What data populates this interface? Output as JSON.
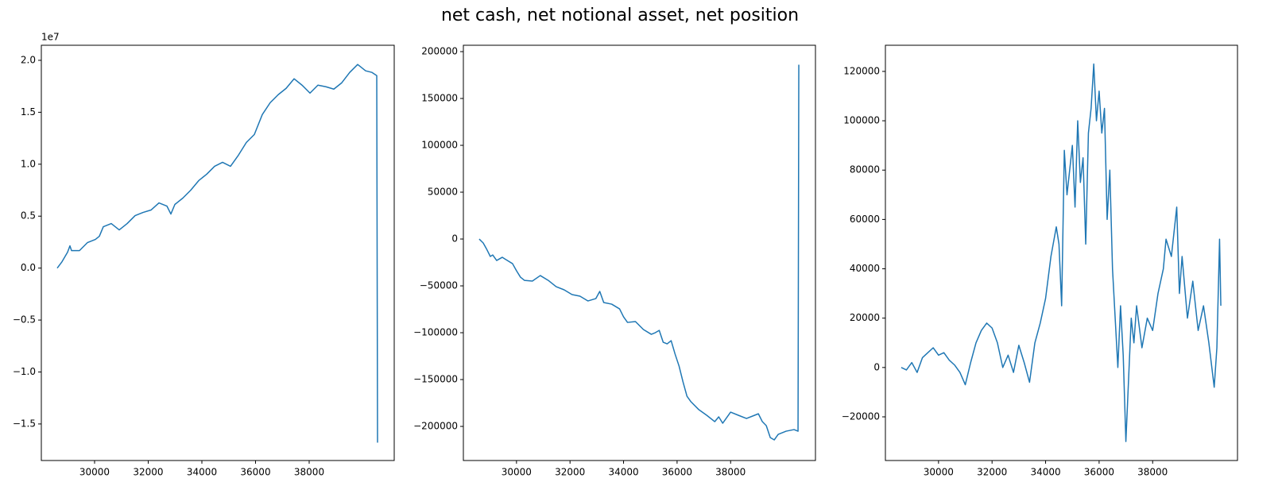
{
  "title": "net cash, net notional asset, net position",
  "chart_data": [
    {
      "type": "line",
      "color": "#1f77b4",
      "y_offset_label": "1e7",
      "xlim": [
        28015,
        41170
      ],
      "xticks": [
        30000,
        32000,
        34000,
        36000,
        38000
      ],
      "ylim": [
        -18520000,
        21450000
      ],
      "yticks": [
        {
          "value": -15000000,
          "label": "−1.5"
        },
        {
          "value": -10000000,
          "label": "−1.0"
        },
        {
          "value": -5000000,
          "label": "−0.5"
        },
        {
          "value": 0,
          "label": "0.0"
        },
        {
          "value": 5000000,
          "label": "0.5"
        },
        {
          "value": 10000000,
          "label": "1.0"
        },
        {
          "value": 15000000,
          "label": "1.5"
        },
        {
          "value": 20000000,
          "label": "2.0"
        }
      ],
      "x": [
        28607,
        28785,
        28993,
        29081,
        29141,
        29437,
        29733,
        30030,
        30178,
        30326,
        30622,
        30919,
        31215,
        31511,
        31807,
        32104,
        32400,
        32696,
        32844,
        32993,
        33289,
        33585,
        33882,
        34178,
        34474,
        34770,
        35067,
        35363,
        35659,
        35956,
        36252,
        36548,
        36845,
        37141,
        37437,
        37733,
        38030,
        38326,
        38622,
        38919,
        39215,
        39511,
        39807,
        40104,
        40341,
        40519,
        40548
      ],
      "values": [
        0,
        612600,
        1531400,
        2144000,
        1684500,
        1684500,
        2450200,
        2756500,
        3062800,
        3981600,
        4287900,
        3675400,
        4287900,
        5053600,
        5359900,
        5589600,
        6278700,
        5972500,
        5206800,
        6125600,
        6738200,
        7503900,
        8422700,
        9035300,
        9801000,
        10183800,
        9801000,
        10872900,
        12098100,
        12863800,
        14778000,
        15926600,
        16692300,
        17304800,
        18223700,
        17611100,
        16845400,
        17611100,
        17458000,
        17228300,
        17840800,
        18836200,
        19601900,
        18989400,
        18836200,
        18529900,
        -16800000
      ]
    },
    {
      "type": "line",
      "color": "#1f77b4",
      "xlim": [
        28015,
        41170
      ],
      "xticks": [
        30000,
        32000,
        34000,
        36000,
        38000
      ],
      "ylim": [
        -236400,
        206800
      ],
      "yticks": [
        {
          "value": -200000,
          "label": "−200000"
        },
        {
          "value": -150000,
          "label": "−150000"
        },
        {
          "value": -100000,
          "label": "−100000"
        },
        {
          "value": -50000,
          "label": "−50000"
        },
        0,
        50000,
        100000,
        150000,
        200000
      ],
      "x": [
        28607,
        28756,
        28874,
        29022,
        29111,
        29259,
        29467,
        29704,
        29852,
        30000,
        30148,
        30296,
        30593,
        30889,
        31185,
        31482,
        31778,
        32074,
        32370,
        32667,
        32963,
        33111,
        33259,
        33556,
        33852,
        34000,
        34148,
        34445,
        34741,
        35037,
        35185,
        35333,
        35482,
        35630,
        35778,
        35926,
        36074,
        36222,
        36370,
        36519,
        36815,
        37111,
        37408,
        37556,
        37704,
        38000,
        38296,
        38593,
        38889,
        39037,
        39185,
        39333,
        39482,
        39630,
        39778,
        40074,
        40370,
        40519,
        40548
      ],
      "values": [
        0,
        -4200,
        -10200,
        -18600,
        -17000,
        -22900,
        -19500,
        -23700,
        -26300,
        -33900,
        -40700,
        -44100,
        -44900,
        -39000,
        -44100,
        -50900,
        -54200,
        -59300,
        -61000,
        -66100,
        -63600,
        -55900,
        -67800,
        -69500,
        -74600,
        -83100,
        -89000,
        -88100,
        -96600,
        -101700,
        -100000,
        -97500,
        -110200,
        -111900,
        -108500,
        -122900,
        -135600,
        -152600,
        -167800,
        -173700,
        -182200,
        -188200,
        -194900,
        -189800,
        -196600,
        -184800,
        -188200,
        -191500,
        -188200,
        -186500,
        -194900,
        -199200,
        -211900,
        -214400,
        -208500,
        -205100,
        -203400,
        -205100,
        186000
      ]
    },
    {
      "type": "line",
      "color": "#1f77b4",
      "xlim": [
        28015,
        41170
      ],
      "xticks": [
        30000,
        32000,
        34000,
        36000,
        38000
      ],
      "ylim": [
        -37700,
        130600
      ],
      "yticks": [
        {
          "value": -20000,
          "label": "−20000"
        },
        0,
        20000,
        40000,
        60000,
        80000,
        100000,
        120000
      ],
      "x": [
        28607,
        28800,
        29000,
        29200,
        29400,
        29600,
        29800,
        30000,
        30200,
        30400,
        30600,
        30800,
        31000,
        31200,
        31400,
        31600,
        31800,
        32000,
        32200,
        32400,
        32600,
        32800,
        33000,
        33200,
        33400,
        33600,
        33800,
        34000,
        34200,
        34400,
        34500,
        34600,
        34700,
        34800,
        34900,
        35000,
        35100,
        35200,
        35300,
        35400,
        35500,
        35600,
        35700,
        35800,
        35900,
        36000,
        36100,
        36200,
        36300,
        36400,
        36500,
        36600,
        36700,
        36800,
        36900,
        37000,
        37100,
        37200,
        37300,
        37400,
        37600,
        37800,
        38000,
        38200,
        38400,
        38500,
        38700,
        38900,
        39000,
        39100,
        39300,
        39500,
        39700,
        39900,
        40100,
        40300,
        40400,
        40500,
        40548
      ],
      "values": [
        0,
        -1000,
        2000,
        -2000,
        4000,
        6000,
        8000,
        5000,
        6000,
        3000,
        1000,
        -2000,
        -7000,
        2000,
        10000,
        15000,
        18000,
        16000,
        10000,
        0,
        5000,
        -2000,
        9000,
        2000,
        -6000,
        10000,
        18000,
        28000,
        45000,
        57000,
        50000,
        25000,
        88000,
        70000,
        80000,
        90000,
        65000,
        100000,
        75000,
        85000,
        50000,
        95000,
        105000,
        123000,
        100000,
        112000,
        95000,
        105000,
        60000,
        80000,
        40000,
        20000,
        0,
        25000,
        5000,
        -30000,
        -5000,
        20000,
        10000,
        25000,
        8000,
        20000,
        15000,
        30000,
        40000,
        52000,
        45000,
        65000,
        30000,
        45000,
        20000,
        35000,
        15000,
        25000,
        10000,
        -8000,
        8000,
        52000,
        25000
      ]
    }
  ]
}
